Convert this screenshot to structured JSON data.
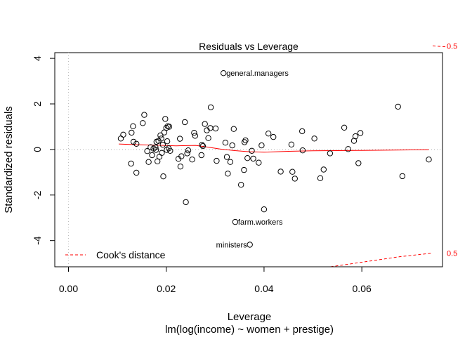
{
  "chart_data": {
    "type": "scatter",
    "title": "Residuals vs Leverage",
    "xlabel": "Leverage",
    "subtitle": "lm(log(income) ~ women + prestige)",
    "ylabel": "Standardized residuals",
    "xlim": [
      -0.0028,
      0.0765
    ],
    "ylim": [
      -5.15,
      4.25
    ],
    "x_ticks": [
      0.0,
      0.02,
      0.04,
      0.06
    ],
    "x_tick_labels": [
      "0.00",
      "0.02",
      "0.04",
      "0.06"
    ],
    "y_ticks": [
      -4,
      -2,
      0,
      2,
      4
    ],
    "y_tick_labels": [
      "-4",
      "-2",
      "0",
      "2",
      "4"
    ],
    "reference_lines": {
      "y_zero": true,
      "x_zero": true,
      "style": "dotted",
      "color": "#bebebe"
    },
    "point_color": "#000000",
    "smooth_color": "#ff0000",
    "cook_color": "#ff0000",
    "points": [
      {
        "x": 0.0107,
        "y": 0.48
      },
      {
        "x": 0.0112,
        "y": 0.65
      },
      {
        "x": 0.0128,
        "y": -0.62
      },
      {
        "x": 0.0129,
        "y": 0.74
      },
      {
        "x": 0.0132,
        "y": 1.02
      },
      {
        "x": 0.0133,
        "y": 0.34
      },
      {
        "x": 0.0139,
        "y": 0.25
      },
      {
        "x": 0.0139,
        "y": -1.02
      },
      {
        "x": 0.0152,
        "y": 1.16
      },
      {
        "x": 0.0155,
        "y": 1.52
      },
      {
        "x": 0.0161,
        "y": -0.07
      },
      {
        "x": 0.0164,
        "y": -0.55
      },
      {
        "x": 0.0168,
        "y": 0.1
      },
      {
        "x": 0.0171,
        "y": -0.25
      },
      {
        "x": 0.0174,
        "y": 0.04
      },
      {
        "x": 0.0178,
        "y": 0.09
      },
      {
        "x": 0.0179,
        "y": -0.02
      },
      {
        "x": 0.018,
        "y": 0.34
      },
      {
        "x": 0.0182,
        "y": -0.52
      },
      {
        "x": 0.0184,
        "y": 0.38
      },
      {
        "x": 0.0186,
        "y": -0.32
      },
      {
        "x": 0.0188,
        "y": 0.62
      },
      {
        "x": 0.019,
        "y": 0.48
      },
      {
        "x": 0.0191,
        "y": -0.15
      },
      {
        "x": 0.0193,
        "y": 0.21
      },
      {
        "x": 0.0194,
        "y": -1.18
      },
      {
        "x": 0.0196,
        "y": 0.75
      },
      {
        "x": 0.0198,
        "y": 1.34
      },
      {
        "x": 0.02,
        "y": 0.95
      },
      {
        "x": 0.0201,
        "y": -0.02
      },
      {
        "x": 0.0202,
        "y": 0.36
      },
      {
        "x": 0.0203,
        "y": 1.02
      },
      {
        "x": 0.0205,
        "y": 0.05
      },
      {
        "x": 0.0206,
        "y": 1.0
      },
      {
        "x": 0.0208,
        "y": -0.06
      },
      {
        "x": 0.0225,
        "y": -0.41
      },
      {
        "x": 0.0228,
        "y": 0.47
      },
      {
        "x": 0.0229,
        "y": -0.75
      },
      {
        "x": 0.0231,
        "y": -0.3
      },
      {
        "x": 0.0238,
        "y": 1.2
      },
      {
        "x": 0.024,
        "y": -2.31
      },
      {
        "x": 0.0243,
        "y": -0.17
      },
      {
        "x": 0.0245,
        "y": -0.04
      },
      {
        "x": 0.0253,
        "y": -0.44
      },
      {
        "x": 0.0257,
        "y": 0.73
      },
      {
        "x": 0.0259,
        "y": 0.6
      },
      {
        "x": 0.0272,
        "y": -0.25
      },
      {
        "x": 0.0273,
        "y": 0.2
      },
      {
        "x": 0.0275,
        "y": 0.15
      },
      {
        "x": 0.0279,
        "y": 1.12
      },
      {
        "x": 0.0283,
        "y": 0.84
      },
      {
        "x": 0.0286,
        "y": 0.5
      },
      {
        "x": 0.029,
        "y": 0.94
      },
      {
        "x": 0.0291,
        "y": 1.85
      },
      {
        "x": 0.0301,
        "y": 0.92
      },
      {
        "x": 0.0303,
        "y": -0.5
      },
      {
        "x": 0.0317,
        "y": 3.35
      },
      {
        "x": 0.0321,
        "y": 0.3
      },
      {
        "x": 0.0324,
        "y": -0.33
      },
      {
        "x": 0.0326,
        "y": -1.06
      },
      {
        "x": 0.0331,
        "y": -0.55
      },
      {
        "x": 0.0335,
        "y": 0.18
      },
      {
        "x": 0.0338,
        "y": 0.9
      },
      {
        "x": 0.0341,
        "y": -3.18
      },
      {
        "x": 0.0353,
        "y": -1.55
      },
      {
        "x": 0.0359,
        "y": -0.9
      },
      {
        "x": 0.036,
        "y": 0.32
      },
      {
        "x": 0.0362,
        "y": 0.4
      },
      {
        "x": 0.0366,
        "y": -0.38
      },
      {
        "x": 0.0371,
        "y": -4.18
      },
      {
        "x": 0.0375,
        "y": -0.06
      },
      {
        "x": 0.0378,
        "y": -0.4
      },
      {
        "x": 0.0389,
        "y": -0.58
      },
      {
        "x": 0.0395,
        "y": 0.18
      },
      {
        "x": 0.04,
        "y": -2.63
      },
      {
        "x": 0.0409,
        "y": 0.7
      },
      {
        "x": 0.0419,
        "y": 0.55
      },
      {
        "x": 0.0434,
        "y": -0.97
      },
      {
        "x": 0.0456,
        "y": 0.22
      },
      {
        "x": 0.0458,
        "y": -0.98
      },
      {
        "x": 0.0463,
        "y": -1.28
      },
      {
        "x": 0.0478,
        "y": 0.8
      },
      {
        "x": 0.0479,
        "y": -0.04
      },
      {
        "x": 0.0503,
        "y": 0.48
      },
      {
        "x": 0.0515,
        "y": -1.26
      },
      {
        "x": 0.0522,
        "y": -0.88
      },
      {
        "x": 0.0535,
        "y": -0.17
      },
      {
        "x": 0.0564,
        "y": 0.96
      },
      {
        "x": 0.0572,
        "y": 0.02
      },
      {
        "x": 0.0584,
        "y": 0.38
      },
      {
        "x": 0.0587,
        "y": 0.58
      },
      {
        "x": 0.0593,
        "y": -0.6
      },
      {
        "x": 0.0597,
        "y": 0.72
      },
      {
        "x": 0.0674,
        "y": 1.88
      },
      {
        "x": 0.0683,
        "y": -1.17
      },
      {
        "x": 0.0737,
        "y": -0.44
      }
    ],
    "point_labels": [
      {
        "x": 0.0317,
        "y": 3.35,
        "text": "general.managers",
        "side": "right"
      },
      {
        "x": 0.0341,
        "y": -3.18,
        "text": "farm.workers",
        "side": "right"
      },
      {
        "x": 0.0371,
        "y": -4.18,
        "text": "ministers",
        "side": "left"
      }
    ],
    "smooth_line": [
      {
        "x": 0.0103,
        "y": 0.24
      },
      {
        "x": 0.014,
        "y": 0.21
      },
      {
        "x": 0.018,
        "y": 0.19
      },
      {
        "x": 0.022,
        "y": 0.16
      },
      {
        "x": 0.026,
        "y": 0.18
      },
      {
        "x": 0.028,
        "y": 0.12
      },
      {
        "x": 0.031,
        "y": 0.02
      },
      {
        "x": 0.034,
        "y": -0.05
      },
      {
        "x": 0.037,
        "y": -0.1
      },
      {
        "x": 0.04,
        "y": -0.12
      },
      {
        "x": 0.045,
        "y": -0.08
      },
      {
        "x": 0.05,
        "y": -0.06
      },
      {
        "x": 0.055,
        "y": -0.05
      },
      {
        "x": 0.06,
        "y": -0.04
      },
      {
        "x": 0.065,
        "y": -0.03
      },
      {
        "x": 0.07,
        "y": -0.02
      },
      {
        "x": 0.0737,
        "y": -0.01
      }
    ],
    "cooks_distance": {
      "level": 0.5,
      "upper": [
        {
          "x": 0.0745,
          "y": 4.55
        },
        {
          "x": 0.0775,
          "y": 4.5
        }
      ],
      "lower": [
        {
          "x": 0.0536,
          "y": -5.15
        },
        {
          "x": 0.06,
          "y": -4.95
        },
        {
          "x": 0.068,
          "y": -4.7
        },
        {
          "x": 0.0745,
          "y": -4.55
        }
      ],
      "upper_label": "0.5",
      "lower_label": "0.5"
    },
    "legend": {
      "position": "bottom-left",
      "label": "Cook's distance",
      "line_style": "dashed",
      "color": "#ff0000"
    }
  }
}
